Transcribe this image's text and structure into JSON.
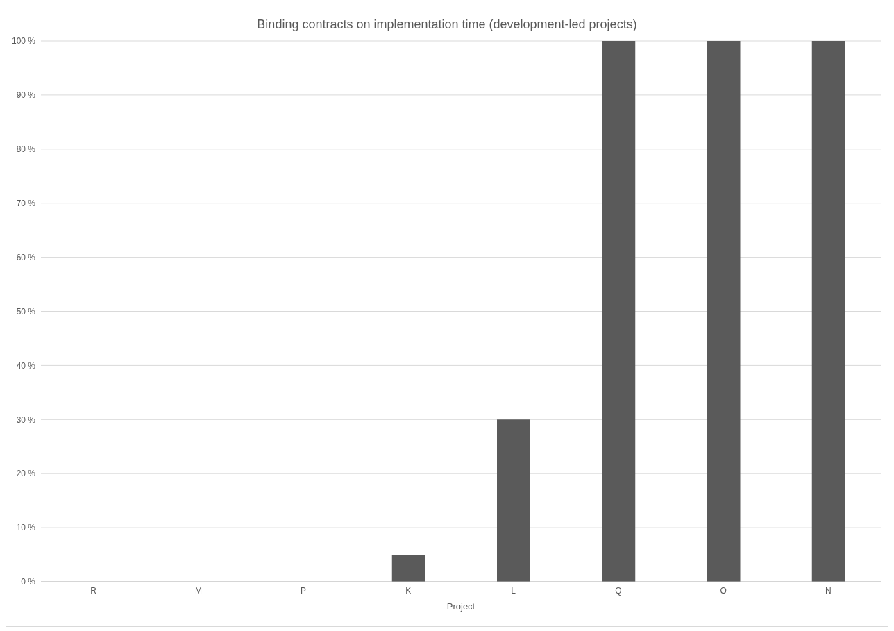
{
  "chart_data": {
    "type": "bar",
    "title": "Binding contracts on implementation time (development-led projects)",
    "xlabel": "Project",
    "categories": [
      "R",
      "M",
      "P",
      "K",
      "L",
      "Q",
      "O",
      "N"
    ],
    "values": [
      0,
      0,
      0,
      5,
      30,
      100,
      100,
      100
    ],
    "color": "#5a5a5a",
    "ylim": [
      0,
      100
    ],
    "yticks": [
      {
        "value": 0,
        "label": "0 %"
      },
      {
        "value": 10,
        "label": "10 %"
      },
      {
        "value": 20,
        "label": "20 %"
      },
      {
        "value": 30,
        "label": "30 %"
      },
      {
        "value": 40,
        "label": "40 %"
      },
      {
        "value": 50,
        "label": "50 %"
      },
      {
        "value": 60,
        "label": "60 %"
      },
      {
        "value": 70,
        "label": "70 %"
      },
      {
        "value": 80,
        "label": "80 %"
      },
      {
        "value": 90,
        "label": "90 %"
      },
      {
        "value": 100,
        "label": "100 %"
      }
    ],
    "grid": "y"
  }
}
